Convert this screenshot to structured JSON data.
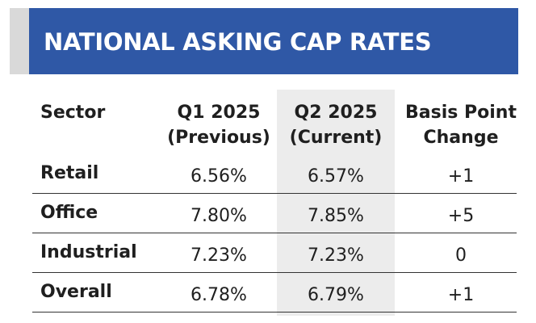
{
  "title": "NATIONAL ASKING CAP RATES",
  "colors": {
    "title_bar": "#2f58a6",
    "title_accent": "#d9d9d9",
    "current_column_shade": "#ececec"
  },
  "table": {
    "headers": {
      "sector": "Sector",
      "q1_line1": "Q1 2025",
      "q1_line2": "(Previous)",
      "q2_line1": "Q2 2025",
      "q2_line2": "(Current)",
      "bp_line1": "Basis Point",
      "bp_line2": "Change"
    },
    "rows": [
      {
        "sector": "Retail",
        "q1": "6.56%",
        "q2": "6.57%",
        "change": "+1"
      },
      {
        "sector": "Office",
        "q1": "7.80%",
        "q2": "7.85%",
        "change": "+5"
      },
      {
        "sector": "Industrial",
        "q1": "7.23%",
        "q2": "7.23%",
        "change": "0"
      },
      {
        "sector": "Overall",
        "q1": "6.78%",
        "q2": "6.79%",
        "change": "+1"
      }
    ]
  }
}
